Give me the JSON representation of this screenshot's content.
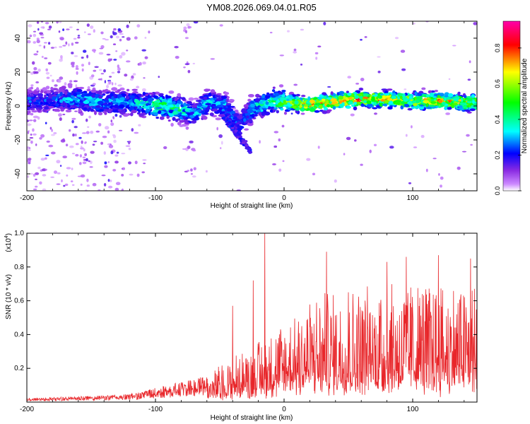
{
  "page_title": "YM08.2026.069.04.01.R05",
  "chart_data": [
    {
      "type": "heatmap",
      "title": "YM08.2026.069.04.01.R05",
      "xlabel": "Height of straight line (km)",
      "ylabel": "Frequency (Hz)",
      "xlim": [
        -200,
        150
      ],
      "ylim": [
        -50,
        50
      ],
      "x_ticks": [
        -200,
        -100,
        0,
        100
      ],
      "x_tick_labels": [
        "-200",
        "-100",
        "0",
        "100"
      ],
      "y_ticks": [
        -40,
        -20,
        0,
        20,
        40
      ],
      "y_tick_labels": [
        "-40",
        "-20",
        "0",
        "20",
        "40"
      ],
      "colorbar": {
        "label": "Normalized spectral amplitude",
        "range": [
          0.0,
          0.95
        ],
        "ticks": [
          0.0,
          0.2,
          0.4,
          0.6,
          0.8
        ],
        "tick_labels": [
          "0.0",
          "0.2",
          "0.4",
          "0.6",
          "0.8"
        ],
        "colors": [
          "#ffffff",
          "#cc88ff",
          "#8a2be2",
          "#0000ff",
          "#00ffff",
          "#00ff00",
          "#ffff00",
          "#ff0000",
          "#ff00aa"
        ]
      },
      "ridge": [
        {
          "x": -185,
          "y": 3,
          "amp": 0.25
        },
        {
          "x": -160,
          "y": 4,
          "amp": 0.32
        },
        {
          "x": -140,
          "y": 2,
          "amp": 0.3
        },
        {
          "x": -120,
          "y": 2,
          "amp": 0.3
        },
        {
          "x": -110,
          "y": 1,
          "amp": 0.4
        },
        {
          "x": -95,
          "y": 0,
          "amp": 0.45
        },
        {
          "x": -80,
          "y": -2,
          "amp": 0.4
        },
        {
          "x": -70,
          "y": -5,
          "amp": 0.3
        },
        {
          "x": -60,
          "y": 2,
          "amp": 0.35
        },
        {
          "x": -45,
          "y": 0,
          "amp": 0.3
        },
        {
          "x": -35,
          "y": -12,
          "amp": 0.25
        },
        {
          "x": -25,
          "y": -2,
          "amp": 0.35
        },
        {
          "x": -10,
          "y": 3,
          "amp": 0.4
        },
        {
          "x": 0,
          "y": 2,
          "amp": 0.55
        },
        {
          "x": 20,
          "y": 1,
          "amp": 0.75
        },
        {
          "x": 40,
          "y": 3,
          "amp": 0.7
        },
        {
          "x": 60,
          "y": 4,
          "amp": 0.75
        },
        {
          "x": 80,
          "y": 4,
          "amp": 0.7
        },
        {
          "x": 100,
          "y": 3,
          "amp": 0.65
        },
        {
          "x": 120,
          "y": 3,
          "amp": 0.7
        },
        {
          "x": 140,
          "y": 2,
          "amp": 0.65
        },
        {
          "x": 150,
          "y": 2,
          "amp": 0.6
        }
      ]
    },
    {
      "type": "line",
      "xlabel": "Height of straight line (km)",
      "ylabel": "SNR (10 * v/v)",
      "y_multiplier_label": "(x10",
      "y_multiplier_exp": "4",
      "xlim": [
        -200,
        150
      ],
      "ylim": [
        0.0,
        1.0
      ],
      "x_ticks": [
        -200,
        -100,
        0,
        100
      ],
      "x_tick_labels": [
        "-200",
        "-100",
        "0",
        "100"
      ],
      "y_ticks": [
        0.2,
        0.4,
        0.6,
        0.8,
        1.0
      ],
      "y_tick_labels": [
        "0.2",
        "0.4",
        "0.6",
        "0.8",
        "1.0"
      ],
      "line_color": "#e8262a",
      "envelope": [
        {
          "x": -200,
          "y": 0.02
        },
        {
          "x": -150,
          "y": 0.03
        },
        {
          "x": -120,
          "y": 0.04
        },
        {
          "x": -100,
          "y": 0.07
        },
        {
          "x": -80,
          "y": 0.1
        },
        {
          "x": -60,
          "y": 0.13
        },
        {
          "x": -40,
          "y": 0.2
        },
        {
          "x": -20,
          "y": 0.28
        },
        {
          "x": 0,
          "y": 0.38
        },
        {
          "x": 20,
          "y": 0.48
        },
        {
          "x": 40,
          "y": 0.5
        },
        {
          "x": 60,
          "y": 0.52
        },
        {
          "x": 80,
          "y": 0.55
        },
        {
          "x": 100,
          "y": 0.56
        },
        {
          "x": 120,
          "y": 0.55
        },
        {
          "x": 150,
          "y": 0.55
        }
      ],
      "peaks": [
        {
          "x": -40,
          "y": 0.57
        },
        {
          "x": -24,
          "y": 0.72
        },
        {
          "x": -15,
          "y": 1.0
        },
        {
          "x": 33,
          "y": 0.89
        },
        {
          "x": 50,
          "y": 0.65
        },
        {
          "x": 80,
          "y": 0.83
        },
        {
          "x": 95,
          "y": 0.86
        },
        {
          "x": 120,
          "y": 0.87
        },
        {
          "x": 145,
          "y": 0.85
        }
      ]
    }
  ]
}
